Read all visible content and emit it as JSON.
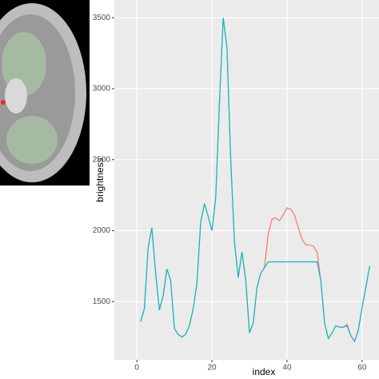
{
  "chart_data": {
    "type": "line",
    "x_label": "index",
    "y_label": "brightness",
    "x": [
      1,
      2,
      3,
      4,
      5,
      6,
      7,
      8,
      9,
      10,
      11,
      12,
      13,
      14,
      15,
      16,
      17,
      18,
      19,
      20,
      21,
      22,
      23,
      24,
      25,
      26,
      27,
      28,
      29,
      30,
      31,
      32,
      33,
      34,
      35,
      36,
      37,
      38,
      39,
      40,
      41,
      42,
      43,
      44,
      45,
      46,
      47,
      48,
      49,
      50,
      51,
      52,
      53,
      54,
      55,
      56,
      57,
      58,
      59,
      60,
      61,
      62
    ],
    "series": [
      {
        "color": "#f8766d",
        "values": [
          1360,
          1450,
          1880,
          2020,
          1700,
          1440,
          1540,
          1730,
          1650,
          1310,
          1270,
          1250,
          1270,
          1330,
          1450,
          1630,
          2060,
          2190,
          2100,
          2000,
          2230,
          2900,
          3500,
          3290,
          2500,
          1920,
          1670,
          1850,
          1650,
          1280,
          1350,
          1600,
          1700,
          1740,
          1980,
          2080,
          2090,
          2070,
          2110,
          2160,
          2150,
          2110,
          2020,
          1940,
          1900,
          1900,
          1890,
          1850,
          1650,
          1350,
          1240,
          1280,
          1330,
          1320,
          1320,
          1340,
          1260,
          1220,
          1300,
          1460,
          1600,
          1750
        ]
      },
      {
        "color": "#00bfc4",
        "values": [
          1360,
          1450,
          1880,
          2020,
          1700,
          1440,
          1540,
          1730,
          1650,
          1310,
          1270,
          1250,
          1270,
          1330,
          1450,
          1630,
          2060,
          2190,
          2100,
          2000,
          2230,
          2900,
          3500,
          3290,
          2500,
          1920,
          1670,
          1850,
          1650,
          1280,
          1350,
          1600,
          1700,
          1740,
          1780,
          1780,
          1780,
          1780,
          1780,
          1780,
          1780,
          1780,
          1780,
          1780,
          1780,
          1780,
          1780,
          1780,
          1650,
          1350,
          1240,
          1280,
          1330,
          1320,
          1320,
          1330,
          1260,
          1220,
          1300,
          1460,
          1600,
          1750
        ]
      }
    ],
    "xlim": [
      -6,
      64.5
    ],
    "ylim": [
      1090,
      3625
    ],
    "xticks": [
      0,
      20,
      40,
      60
    ],
    "yticks": [
      1500,
      2000,
      2500,
      3000,
      3500
    ],
    "grid": true
  }
}
